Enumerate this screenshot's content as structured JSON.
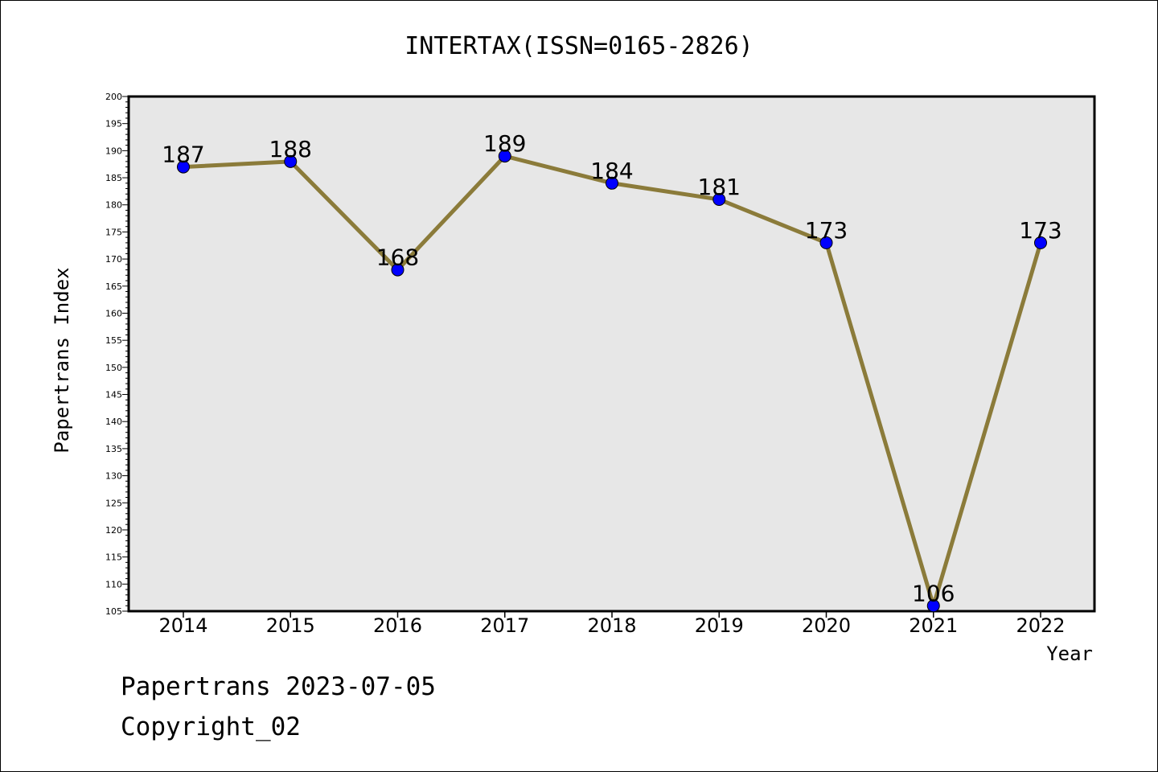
{
  "chart_data": {
    "type": "line",
    "title": "INTERTAX(ISSN=0165-2826)",
    "xlabel": "Year",
    "ylabel": "Papertrans Index",
    "categories": [
      "2014",
      "2015",
      "2016",
      "2017",
      "2018",
      "2019",
      "2020",
      "2021",
      "2022"
    ],
    "series": [
      {
        "values": [
          187,
          188,
          168,
          189,
          184,
          181,
          173,
          106,
          173
        ]
      }
    ],
    "data_labels": [
      "187",
      "188",
      "168",
      "189",
      "184",
      "181",
      "173",
      "106",
      "173"
    ],
    "ylim": [
      105,
      200
    ],
    "y_ticks": [
      105,
      110,
      115,
      120,
      125,
      130,
      135,
      140,
      145,
      150,
      155,
      160,
      165,
      170,
      175,
      180,
      185,
      190,
      195,
      200
    ],
    "y_tick_labels": [
      "105",
      "110",
      "115",
      "120",
      "125",
      "130",
      "135",
      "140",
      "145",
      "150",
      "155",
      "160",
      "165",
      "170",
      "175",
      "180",
      "185",
      "190",
      "195",
      "200"
    ],
    "grid": false,
    "legend": "none",
    "colors": {
      "line": "#8B7B3A",
      "marker": "#0000FF",
      "plot_background": "#E7E7E7"
    }
  },
  "footer": {
    "date_text": "Papertrans 2023-07-05",
    "copyright_text": "Copyright_02"
  }
}
